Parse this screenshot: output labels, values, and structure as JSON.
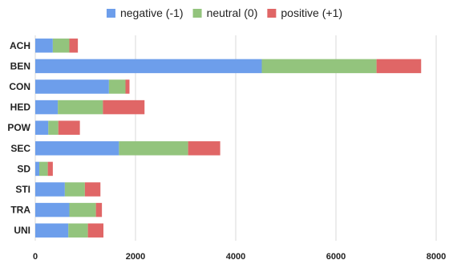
{
  "chart_data": {
    "type": "bar",
    "orientation": "horizontal",
    "stacked": true,
    "categories": [
      "ACH",
      "BEN",
      "CON",
      "HED",
      "POW",
      "SEC",
      "SD",
      "STI",
      "TRA",
      "UNI"
    ],
    "series": [
      {
        "name": "negative (-1)",
        "color": "#6d9eeb",
        "values": [
          350,
          4520,
          1470,
          450,
          260,
          1670,
          80,
          590,
          680,
          660
        ]
      },
      {
        "name": "neutral (0)",
        "color": "#93c47d",
        "values": [
          330,
          2290,
          330,
          900,
          200,
          1380,
          170,
          400,
          530,
          390
        ]
      },
      {
        "name": "positive (+1)",
        "color": "#e06666",
        "values": [
          170,
          890,
          80,
          830,
          430,
          640,
          100,
          310,
          120,
          310
        ]
      }
    ],
    "x_ticks": [
      0,
      2000,
      4000,
      6000,
      8000
    ],
    "xlim": [
      0,
      8000
    ],
    "grid": true,
    "legend_position": "top-center",
    "title": "",
    "xlabel": "",
    "ylabel": ""
  }
}
